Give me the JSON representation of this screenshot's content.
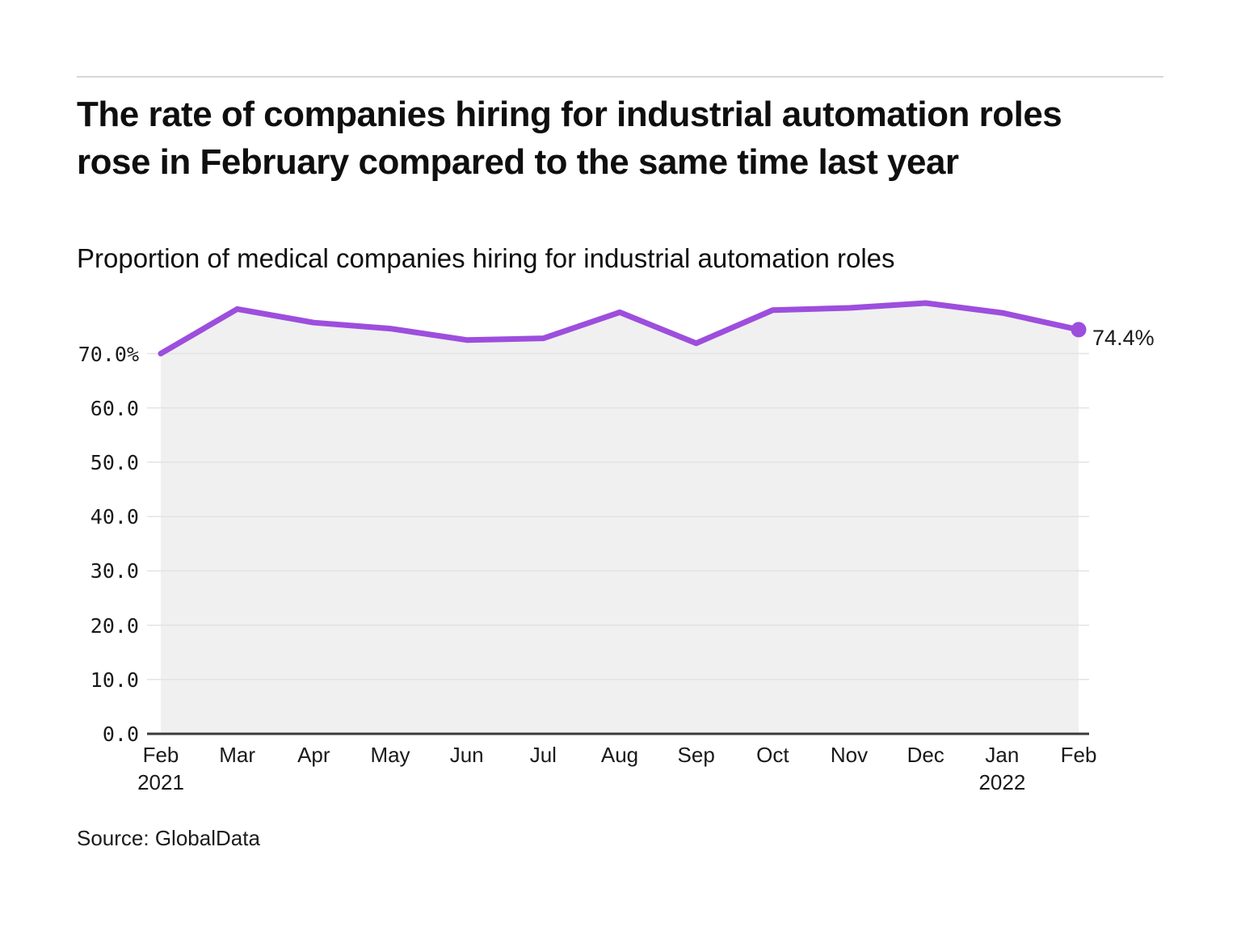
{
  "header": {
    "title": "The rate of companies hiring for industrial automation roles rose in February compared to the same time last year",
    "subtitle": "Proportion of medical companies hiring for industrial automation roles"
  },
  "footer": {
    "source": "Source: GlobalData"
  },
  "chart_data": {
    "type": "line",
    "title": "Proportion of medical companies hiring for industrial automation roles",
    "categories": [
      "Feb 2021",
      "Mar",
      "Apr",
      "May",
      "Jun",
      "Jul",
      "Aug",
      "Sep",
      "Oct",
      "Nov",
      "Dec",
      "Jan 2022",
      "Feb 2022"
    ],
    "x_tick_months": [
      "Feb",
      "Mar",
      "Apr",
      "May",
      "Jun",
      "Jul",
      "Aug",
      "Sep",
      "Oct",
      "Nov",
      "Dec",
      "Jan",
      "Feb"
    ],
    "x_tick_years": {
      "0": "2021",
      "11": "2022"
    },
    "values": [
      70.0,
      78.2,
      75.7,
      74.6,
      72.5,
      72.8,
      77.6,
      71.9,
      78.0,
      78.4,
      79.3,
      77.5,
      74.4
    ],
    "end_label": "74.4%",
    "ylabel": "",
    "xlabel": "",
    "ylim": [
      0,
      80
    ],
    "yticks": [
      0,
      10,
      20,
      30,
      40,
      50,
      60,
      70
    ],
    "ytick_labels": [
      "0.0",
      "10.0",
      "20.0",
      "30.0",
      "40.0",
      "50.0",
      "60.0",
      "70.0%"
    ],
    "grid": true,
    "legend_position": "none",
    "line_color": "#9D4EDD",
    "area_fill_color": "#F0F0F0",
    "grid_color": "#E3E3E3",
    "axis_color": "#3A3A3A",
    "text_color": "#1A1A1A"
  }
}
